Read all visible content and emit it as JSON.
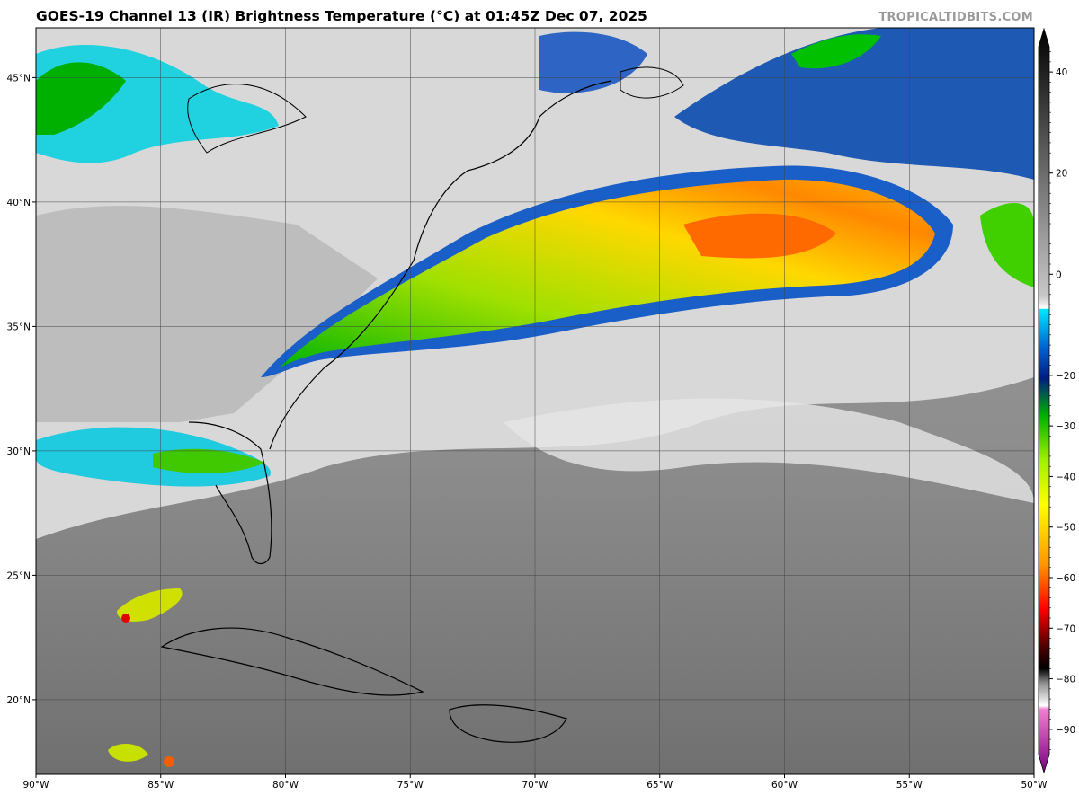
{
  "header": {
    "title": "GOES-19 Channel 13 (IR) Brightness Temperature (°C) at 01:45Z Dec 07, 2025",
    "credit": "TROPICALTIDBITS.COM"
  },
  "map": {
    "lon_range": [
      -90,
      -50
    ],
    "lat_range": [
      17,
      47
    ],
    "lon_ticks": [
      "90°W",
      "85°W",
      "80°W",
      "75°W",
      "70°W",
      "65°W",
      "60°W",
      "55°W",
      "50°W"
    ],
    "lat_ticks": [
      "45°N",
      "40°N",
      "35°N",
      "30°N",
      "25°N",
      "20°N"
    ],
    "gridlines": true
  },
  "colorbar": {
    "labels": [
      "40",
      "20",
      "0",
      "−20",
      "−30",
      "−40",
      "−50",
      "−60",
      "−70",
      "−80",
      "−90"
    ],
    "range": [
      -95,
      45
    ],
    "colors": {
      "warm": "#000000",
      "gray": "#8a8a8a",
      "cold_white": "#f4f4f4",
      "cyan": "#00e0ff",
      "blue": "#003c9e",
      "green": "#00c800",
      "yellow": "#ffff00",
      "orange": "#ff8c00",
      "red": "#e00000",
      "pink": "#e050c0",
      "purple": "#7a0090"
    }
  }
}
